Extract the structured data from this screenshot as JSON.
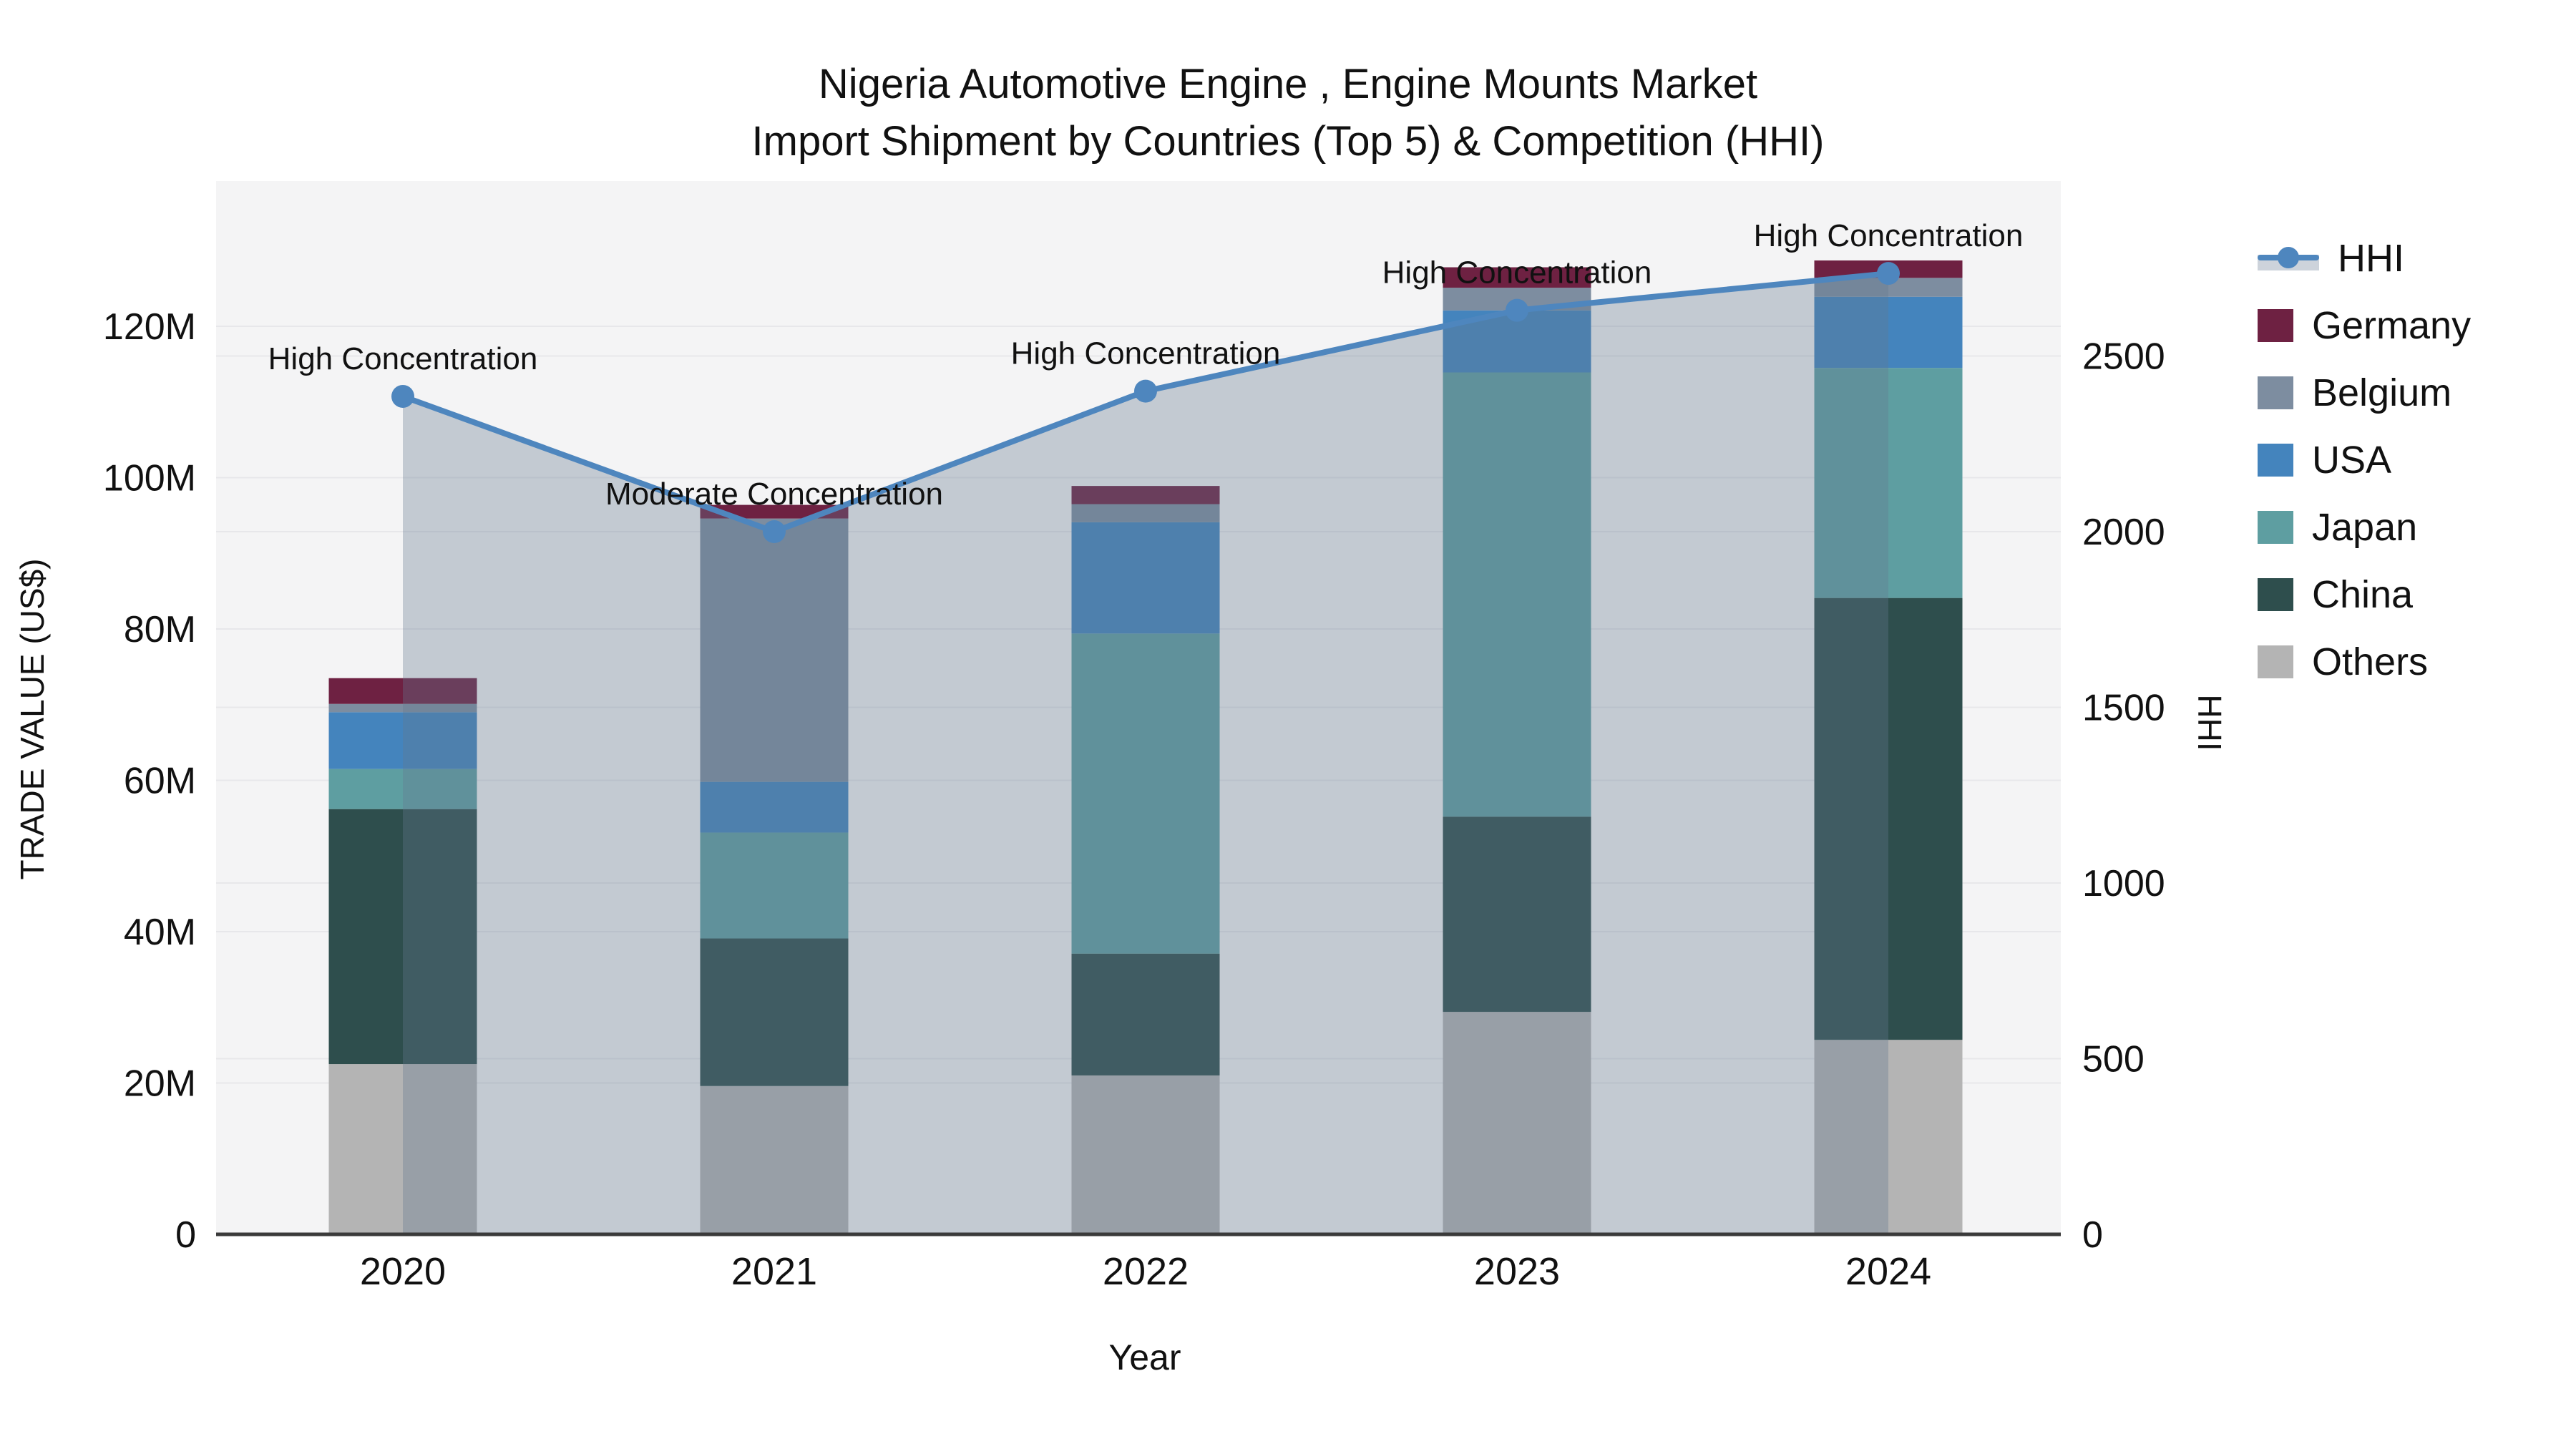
{
  "title": {
    "line1": "Nigeria Automotive Engine , Engine Mounts Market",
    "line2": "Import Shipment by Countries (Top 5) & Competition (HHI)"
  },
  "axes": {
    "y_left_title": "TRADE VALUE (US$)",
    "y_right_title": "HHI",
    "x_title": "Year",
    "y_left_tick_labels": [
      "0",
      "20M",
      "40M",
      "60M",
      "80M",
      "100M",
      "120M"
    ],
    "y_right_tick_labels": [
      "0",
      "500",
      "1000",
      "1500",
      "2000",
      "2500"
    ]
  },
  "legend": {
    "items": [
      {
        "id": "hhi",
        "label": "HHI",
        "type": "line",
        "color": "#4e86be"
      },
      {
        "id": "germany",
        "label": "Germany",
        "type": "swatch",
        "color": "#6e2142"
      },
      {
        "id": "belgium",
        "label": "Belgium",
        "type": "swatch",
        "color": "#7d8da0"
      },
      {
        "id": "usa",
        "label": "USA",
        "type": "swatch",
        "color": "#4484bd"
      },
      {
        "id": "japan",
        "label": "Japan",
        "type": "swatch",
        "color": "#5e9ea1"
      },
      {
        "id": "china",
        "label": "China",
        "type": "swatch",
        "color": "#2e4e4d"
      },
      {
        "id": "others",
        "label": "Others",
        "type": "swatch",
        "color": "#b4b4b4"
      }
    ]
  },
  "colors": {
    "plot_background": "#f4f4f5",
    "gridline": "#e7e7ea",
    "axis_line": "#3a3a3a",
    "hhi_line": "#4e86be",
    "hhi_area_fill": "#64788f",
    "hhi_area_opacity": 0.34,
    "annotation_text": "#111111"
  },
  "chart_data": {
    "type": "bar",
    "subtype": "stacked-bars-with-line-overlay",
    "title": "Nigeria Automotive Engine , Engine Mounts Market Import Shipment by Countries (Top 5) & Competition (HHI)",
    "xlabel": "Year",
    "ylabel_left": "TRADE VALUE (US$)",
    "ylabel_right": "HHI",
    "categories": [
      "2020",
      "2021",
      "2022",
      "2023",
      "2024"
    ],
    "unit_left": "million US$",
    "ylim_left": [
      0,
      139
    ],
    "ylim_right": [
      0,
      3000
    ],
    "grid": true,
    "legend_position": "right",
    "series": [
      {
        "name": "Others",
        "stack_order": 1,
        "values": [
          22.5,
          19.6,
          21.0,
          29.4,
          25.7
        ]
      },
      {
        "name": "China",
        "stack_order": 2,
        "values": [
          33.7,
          19.5,
          16.1,
          25.8,
          58.4
        ]
      },
      {
        "name": "Japan",
        "stack_order": 3,
        "values": [
          5.3,
          14.0,
          42.3,
          58.7,
          30.4
        ]
      },
      {
        "name": "USA",
        "stack_order": 4,
        "values": [
          7.5,
          6.7,
          14.7,
          8.2,
          9.4
        ]
      },
      {
        "name": "Belgium",
        "stack_order": 5,
        "values": [
          1.1,
          34.8,
          2.4,
          3.0,
          2.5
        ]
      },
      {
        "name": "Germany",
        "stack_order": 6,
        "values": [
          3.4,
          1.8,
          2.4,
          2.7,
          2.3
        ]
      }
    ],
    "bar_totals": [
      73.5,
      96.4,
      98.9,
      127.8,
      128.7
    ],
    "line_series": {
      "name": "HHI",
      "axis": "right",
      "values": [
        2385,
        2000,
        2400,
        2630,
        2735
      ],
      "area_fill_to_zero": true
    },
    "annotations": [
      {
        "x": "2020",
        "text": "High Concentration"
      },
      {
        "x": "2021",
        "text": "Moderate Concentration"
      },
      {
        "x": "2022",
        "text": "High Concentration"
      },
      {
        "x": "2023",
        "text": "High Concentration"
      },
      {
        "x": "2024",
        "text": "High Concentration"
      }
    ]
  }
}
